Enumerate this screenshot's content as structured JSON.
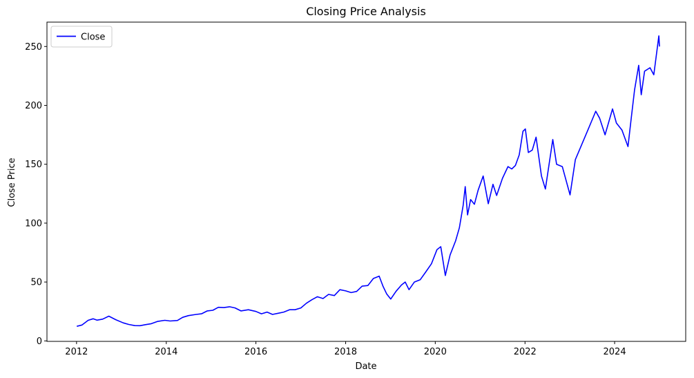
{
  "chart_data": {
    "type": "line",
    "title": "Closing Price Analysis",
    "xlabel": "Date",
    "ylabel": "Close Price",
    "x_type": "date",
    "xlim": [
      "2011-05-05",
      "2025-08-02"
    ],
    "ylim": [
      -0.4,
      270.7
    ],
    "x_ticks": [
      "2012",
      "2014",
      "2016",
      "2018",
      "2020",
      "2022",
      "2024"
    ],
    "y_ticks": [
      0,
      50,
      100,
      150,
      200,
      250
    ],
    "grid": false,
    "legend": {
      "position": "top-left",
      "entries": [
        "Close"
      ]
    },
    "series": [
      {
        "name": "Close",
        "color": "#0000ff",
        "points": [
          [
            "2012-01-03",
            12.4
          ],
          [
            "2012-02-15",
            13.5
          ],
          [
            "2012-04-05",
            17.5
          ],
          [
            "2012-05-15",
            18.8
          ],
          [
            "2012-06-15",
            17.6
          ],
          [
            "2012-08-01",
            18.5
          ],
          [
            "2012-09-20",
            21.0
          ],
          [
            "2012-11-15",
            18.0
          ],
          [
            "2013-01-15",
            15.3
          ],
          [
            "2013-03-01",
            14.0
          ],
          [
            "2013-04-20",
            13.0
          ],
          [
            "2013-06-01",
            12.9
          ],
          [
            "2013-07-15",
            13.8
          ],
          [
            "2013-09-01",
            14.6
          ],
          [
            "2013-10-20",
            16.5
          ],
          [
            "2013-12-20",
            17.5
          ],
          [
            "2014-02-01",
            16.9
          ],
          [
            "2014-04-01",
            17.3
          ],
          [
            "2014-05-15",
            20.0
          ],
          [
            "2014-07-01",
            21.5
          ],
          [
            "2014-09-01",
            22.5
          ],
          [
            "2014-10-15",
            23.0
          ],
          [
            "2014-12-01",
            25.5
          ],
          [
            "2015-01-15",
            26.0
          ],
          [
            "2015-03-01",
            28.5
          ],
          [
            "2015-04-15",
            28.3
          ],
          [
            "2015-06-01",
            29.0
          ],
          [
            "2015-07-15",
            28.0
          ],
          [
            "2015-09-01",
            25.5
          ],
          [
            "2015-11-01",
            26.5
          ],
          [
            "2016-01-01",
            25.0
          ],
          [
            "2016-02-15",
            23.0
          ],
          [
            "2016-04-01",
            24.5
          ],
          [
            "2016-05-15",
            22.5
          ],
          [
            "2016-07-01",
            23.5
          ],
          [
            "2016-08-15",
            24.5
          ],
          [
            "2016-10-01",
            26.5
          ],
          [
            "2016-11-15",
            26.5
          ],
          [
            "2017-01-01",
            28.0
          ],
          [
            "2017-02-15",
            32.0
          ],
          [
            "2017-04-01",
            35.0
          ],
          [
            "2017-05-15",
            37.5
          ],
          [
            "2017-07-01",
            36.0
          ],
          [
            "2017-08-15",
            39.5
          ],
          [
            "2017-10-01",
            38.5
          ],
          [
            "2017-11-15",
            43.5
          ],
          [
            "2018-01-01",
            42.5
          ],
          [
            "2018-02-15",
            41.0
          ],
          [
            "2018-04-01",
            42.0
          ],
          [
            "2018-05-15",
            46.5
          ],
          [
            "2018-07-01",
            47.0
          ],
          [
            "2018-08-15",
            53.0
          ],
          [
            "2018-10-01",
            55.0
          ],
          [
            "2018-11-01",
            46.5
          ],
          [
            "2018-12-01",
            40.0
          ],
          [
            "2019-01-03",
            35.5
          ],
          [
            "2019-02-15",
            42.0
          ],
          [
            "2019-04-01",
            47.5
          ],
          [
            "2019-05-01",
            50.0
          ],
          [
            "2019-06-01",
            43.5
          ],
          [
            "2019-07-15",
            50.0
          ],
          [
            "2019-09-01",
            52.0
          ],
          [
            "2019-10-15",
            58.5
          ],
          [
            "2019-12-01",
            65.5
          ],
          [
            "2020-01-15",
            77.5
          ],
          [
            "2020-02-15",
            80.0
          ],
          [
            "2020-03-23",
            55.5
          ],
          [
            "2020-05-01",
            73.0
          ],
          [
            "2020-06-15",
            85.0
          ],
          [
            "2020-07-15",
            96.0
          ],
          [
            "2020-08-15",
            115.0
          ],
          [
            "2020-09-01",
            131.0
          ],
          [
            "2020-09-20",
            107.0
          ],
          [
            "2020-10-15",
            120.0
          ],
          [
            "2020-11-15",
            116.0
          ],
          [
            "2020-12-15",
            128.0
          ],
          [
            "2021-01-25",
            140.0
          ],
          [
            "2021-03-08",
            116.5
          ],
          [
            "2021-04-15",
            133.0
          ],
          [
            "2021-05-15",
            123.5
          ],
          [
            "2021-07-01",
            138.0
          ],
          [
            "2021-08-15",
            148.0
          ],
          [
            "2021-09-15",
            146.0
          ],
          [
            "2021-10-15",
            149.0
          ],
          [
            "2021-11-15",
            158.0
          ],
          [
            "2021-12-15",
            178.0
          ],
          [
            "2022-01-04",
            180.0
          ],
          [
            "2022-01-28",
            160.0
          ],
          [
            "2022-03-01",
            162.0
          ],
          [
            "2022-04-01",
            173.0
          ],
          [
            "2022-05-15",
            140.0
          ],
          [
            "2022-06-16",
            129.0
          ],
          [
            "2022-08-15",
            171.0
          ],
          [
            "2022-09-15",
            150.0
          ],
          [
            "2022-11-01",
            148.0
          ],
          [
            "2023-01-03",
            124.0
          ],
          [
            "2023-02-15",
            154.0
          ],
          [
            "2023-04-01",
            165.0
          ],
          [
            "2023-06-01",
            180.0
          ],
          [
            "2023-07-31",
            195.0
          ],
          [
            "2023-09-01",
            189.0
          ],
          [
            "2023-10-15",
            175.0
          ],
          [
            "2023-12-15",
            197.0
          ],
          [
            "2024-01-15",
            185.0
          ],
          [
            "2024-03-01",
            179.0
          ],
          [
            "2024-04-19",
            165.0
          ],
          [
            "2024-05-15",
            189.0
          ],
          [
            "2024-06-11",
            213.0
          ],
          [
            "2024-07-15",
            234.0
          ],
          [
            "2024-08-05",
            209.0
          ],
          [
            "2024-09-01",
            229.0
          ],
          [
            "2024-10-15",
            232.0
          ],
          [
            "2024-11-15",
            226.0
          ],
          [
            "2024-12-26",
            259.0
          ],
          [
            "2024-12-31",
            250.0
          ]
        ]
      }
    ]
  }
}
